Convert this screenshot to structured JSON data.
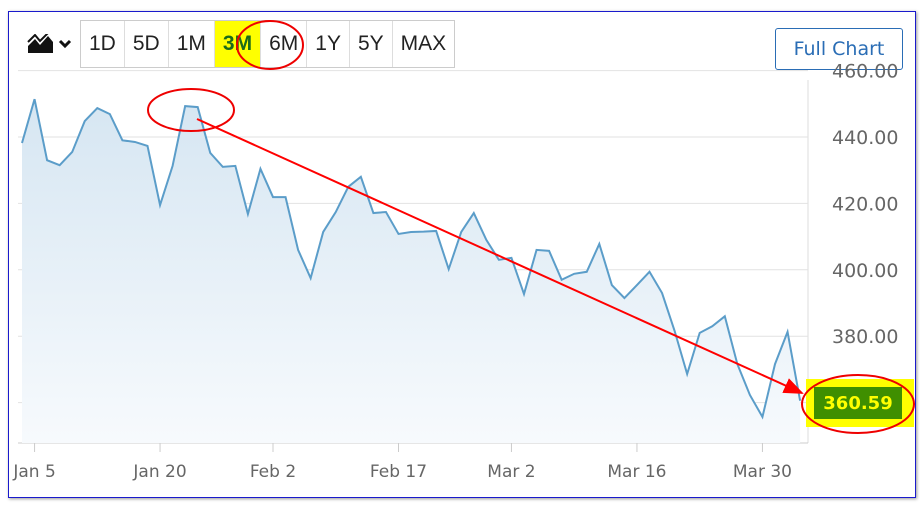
{
  "toolbar": {
    "chart_type_icon": "area-chart-icon",
    "ranges": [
      "1D",
      "5D",
      "1M",
      "3M",
      "6M",
      "1Y",
      "5Y",
      "MAX"
    ],
    "active_range": "3M",
    "full_chart_label": "Full Chart"
  },
  "chart_data": {
    "type": "area",
    "y_ticks": [
      "460.00",
      "440.00",
      "420.00",
      "400.00",
      "380.00"
    ],
    "ylim": [
      350,
      465
    ],
    "x_ticks": [
      {
        "label": "Jan 5",
        "index": 1
      },
      {
        "label": "Jan 20",
        "index": 11
      },
      {
        "label": "Feb 2",
        "index": 20
      },
      {
        "label": "Feb 17",
        "index": 30
      },
      {
        "label": "Mar 2",
        "index": 39
      },
      {
        "label": "Mar 16",
        "index": 49
      },
      {
        "label": "Mar 30",
        "index": 59
      }
    ],
    "values": [
      438.2,
      451.4,
      433,
      431.5,
      435.5,
      444.8,
      448.7,
      446.9,
      439,
      438.5,
      437.3,
      419.5,
      431.3,
      449.3,
      449,
      435.2,
      431,
      431.3,
      416.8,
      430.4,
      421.9,
      421.9,
      406,
      397.5,
      411.4,
      417.4,
      425,
      428,
      417.1,
      417.4,
      410.8,
      411.4,
      411.5,
      411.7,
      400.2,
      411.4,
      417.1,
      409,
      403,
      403.6,
      392.7,
      406,
      405.7,
      397,
      398.8,
      399.4,
      407.8,
      395.4,
      391.5,
      395.4,
      399.4,
      393,
      381.6,
      368.6,
      381,
      383,
      386,
      371.6,
      362.3,
      355.7,
      371.6,
      381.3,
      360.59
    ],
    "last_price": "360.59",
    "grid": true,
    "colors": {
      "line": "#5b9dc9",
      "fill": "#d6e6f2",
      "annotation": "#ff0000",
      "highlight": "#ffff00",
      "price_bg": "#3f8f00"
    }
  }
}
